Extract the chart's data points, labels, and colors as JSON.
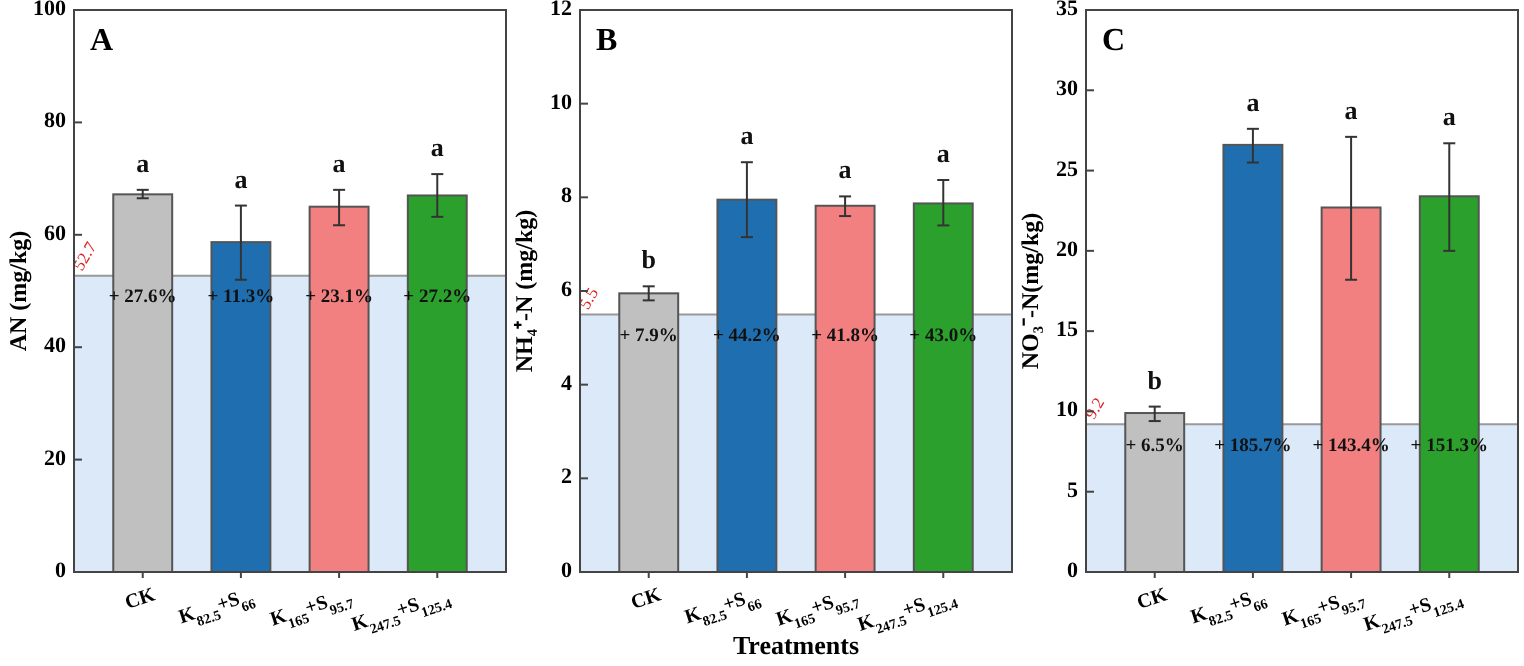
{
  "chart_data": [
    {
      "type": "bar",
      "title": "A",
      "ylabel": "AN (mg/kg)",
      "categories": [
        "CK",
        "K$_{82.5}$+S$_{66}$",
        "K$_{165}$+S$_{95.7}$",
        "K$_{247.5}$+S$_{125.4}$"
      ],
      "values": [
        67.2,
        58.7,
        65,
        67
      ],
      "colors": [
        "#c0c0c0",
        "#1f6fb0",
        "#f28080",
        "#2ca02c"
      ],
      "errors": [
        [
          66.5,
          68
        ],
        [
          52,
          65.2
        ],
        [
          61.7,
          68
        ],
        [
          63.2,
          70.8
        ]
      ],
      "ylim": [
        0,
        100
      ],
      "yticks": [
        0,
        20,
        40,
        60,
        80,
        100
      ],
      "bands": [
        {
          "axis": "y",
          "from": 0,
          "to": 52.7,
          "color": "#dce9f8"
        }
      ],
      "ref_lines": [
        {
          "axis": "y",
          "value": 52.7,
          "label": "52.7",
          "color": "#999999"
        }
      ],
      "annotations": [
        "a",
        "a",
        "a",
        "a",
        "+ 27.6%",
        "+ 11.3%",
        "+ 23.1%",
        "+ 27.2%"
      ]
    },
    {
      "type": "bar",
      "title": "B",
      "ylabel": "NH₄⁺-N (mg/kg)",
      "xlabel": "Treatments",
      "categories": [
        "CK",
        "K$_{82.5}$+S$_{66}$",
        "K$_{165}$+S$_{95.7}$",
        "K$_{247.5}$+S$_{125.4}$"
      ],
      "values": [
        5.95,
        7.95,
        7.82,
        7.87
      ],
      "colors": [
        "#c0c0c0",
        "#1f6fb0",
        "#f28080",
        "#2ca02c"
      ],
      "errors": [
        [
          5.8,
          6.1
        ],
        [
          7.15,
          8.75
        ],
        [
          7.6,
          8.02
        ],
        [
          7.4,
          8.37
        ]
      ],
      "ylim": [
        0,
        12
      ],
      "yticks": [
        0,
        2,
        4,
        6,
        8,
        10,
        12
      ],
      "bands": [
        {
          "axis": "y",
          "from": 0,
          "to": 5.5,
          "color": "#dce9f8"
        }
      ],
      "ref_lines": [
        {
          "axis": "y",
          "value": 5.5,
          "label": "5.5",
          "color": "#999999"
        }
      ],
      "annotations": [
        "b",
        "a",
        "a",
        "a",
        "+ 7.9%",
        "+ 44.2%",
        "+ 41.8%",
        "+ 43.0%"
      ]
    },
    {
      "type": "bar",
      "title": "C",
      "ylabel": "NO₃⁻-N(mg/kg)",
      "categories": [
        "CK",
        "K$_{82.5}$+S$_{66}$",
        "K$_{165}$+S$_{95.7}$",
        "K$_{247.5}$+S$_{125.4}$"
      ],
      "values": [
        9.9,
        26.6,
        22.7,
        23.4
      ],
      "colors": [
        "#c0c0c0",
        "#1f6fb0",
        "#f28080",
        "#2ca02c"
      ],
      "errors": [
        [
          9.4,
          10.3
        ],
        [
          25.5,
          27.6
        ],
        [
          18.2,
          27.1
        ],
        [
          20,
          26.7
        ]
      ],
      "ylim": [
        0,
        35
      ],
      "yticks": [
        0,
        5,
        10,
        15,
        20,
        25,
        30,
        35
      ],
      "bands": [
        {
          "axis": "y",
          "from": 0,
          "to": 9.2,
          "color": "#dce9f8"
        }
      ],
      "ref_lines": [
        {
          "axis": "y",
          "value": 9.2,
          "label": "9.2",
          "color": "#999999"
        }
      ],
      "annotations": [
        "b",
        "a",
        "a",
        "a",
        "+ 6.5%",
        "+ 185.7%",
        "+ 143.4%",
        "+ 151.3%"
      ]
    }
  ]
}
